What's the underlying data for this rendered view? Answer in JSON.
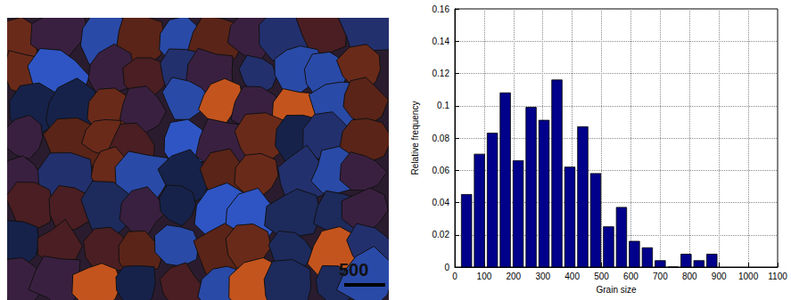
{
  "micrograph": {
    "scale_bar_label": "500"
  },
  "chart_data": {
    "type": "histogram",
    "x_label": "Grain size",
    "y_label": "Relative frequency",
    "bins": [
      18,
      62,
      106,
      150,
      194,
      238,
      282,
      326,
      370,
      414,
      458,
      502,
      546,
      590,
      634,
      678,
      722,
      766,
      810,
      854,
      898
    ],
    "values": [
      0.045,
      0.07,
      0.083,
      0.108,
      0.066,
      0.099,
      0.091,
      0.116,
      0.062,
      0.087,
      0.058,
      0.025,
      0.037,
      0.016,
      0.012,
      0.004,
      0,
      0.008,
      0.004,
      0.008
    ],
    "color": "#00008b",
    "xlim": [
      0,
      1100
    ],
    "xticks": [
      0,
      100,
      200,
      300,
      400,
      500,
      600,
      700,
      800,
      900,
      1000,
      1100
    ],
    "ylim": [
      0,
      0.16
    ],
    "yticks": [
      0,
      0.02,
      0.04,
      0.06,
      0.08,
      0.1,
      0.12,
      0.14,
      0.16
    ],
    "grid": true
  }
}
